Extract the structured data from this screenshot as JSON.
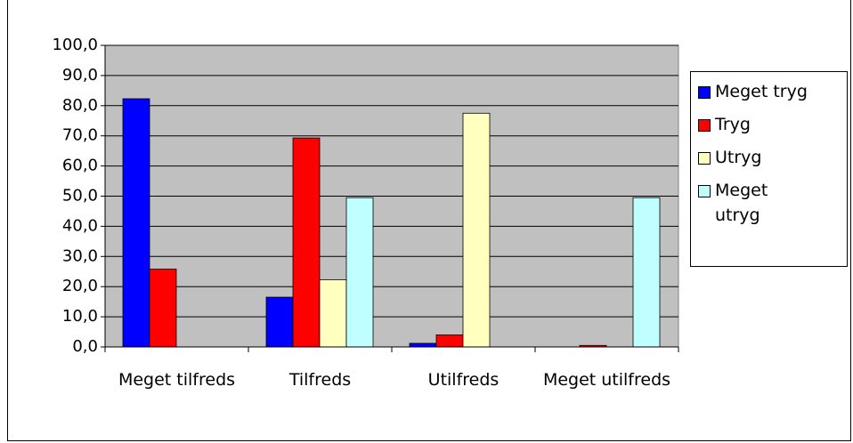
{
  "chart_data": {
    "type": "bar",
    "categories": [
      "Meget tilfreds",
      "Tilfreds",
      "Utilfreds",
      "Meget utilfreds"
    ],
    "series": [
      {
        "name": "Meget tryg",
        "color": "#0000ff",
        "values": [
          82.3,
          16.5,
          1.2,
          0
        ]
      },
      {
        "name": "Tryg",
        "color": "#ff0000",
        "values": [
          25.8,
          69.3,
          4.0,
          0.5
        ]
      },
      {
        "name": "Utryg",
        "color": "#ffffc0",
        "values": [
          0,
          22.3,
          77.5,
          0
        ]
      },
      {
        "name": "Meget utryg",
        "color": "#c0ffff",
        "values": [
          0,
          49.5,
          0,
          49.5
        ]
      }
    ],
    "ylim": [
      0,
      100
    ],
    "yticks": [
      {
        "value": 0,
        "label": "0,0"
      },
      {
        "value": 10,
        "label": "10,0"
      },
      {
        "value": 20,
        "label": "20,0"
      },
      {
        "value": 30,
        "label": "30,0"
      },
      {
        "value": 40,
        "label": "40,0"
      },
      {
        "value": 50,
        "label": "50,0"
      },
      {
        "value": 60,
        "label": "60,0"
      },
      {
        "value": 70,
        "label": "70,0"
      },
      {
        "value": 80,
        "label": "80,0"
      },
      {
        "value": 90,
        "label": "90,0"
      },
      {
        "value": 100,
        "label": "100,0"
      }
    ],
    "grid": true,
    "legend": "right"
  }
}
